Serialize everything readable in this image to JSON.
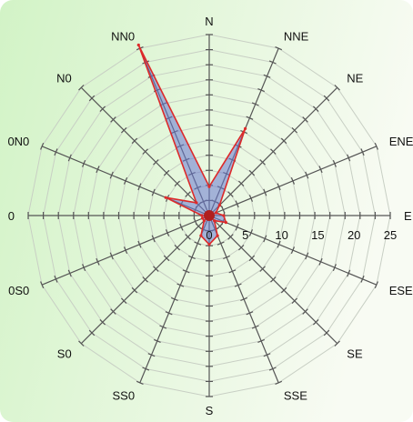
{
  "colors": {
    "background_left": "#d2f3c6",
    "background_right": "#f8fbf3",
    "grid": "#c8cfc4",
    "spoke": "#555555",
    "area_fill": "#6a78cf",
    "area_stroke": "#dd2a2a",
    "center": "#b01e1e",
    "label": "#111111"
  },
  "chart_data": {
    "type": "radar",
    "directions": [
      "N",
      "NNE",
      "NE",
      "ENE",
      "E",
      "ESE",
      "SE",
      "SSE",
      "S",
      "SS0",
      "S0",
      "0S0",
      "0",
      "0N0",
      "N0",
      "NN0"
    ],
    "radial_ticks": [
      "0",
      "5",
      "10",
      "15",
      "20",
      "25"
    ],
    "rmax": 25,
    "rings": 12,
    "grid": true,
    "series": [
      {
        "values": [
          4,
          13,
          2,
          1,
          2,
          2.5,
          1,
          3,
          4,
          3,
          1,
          1,
          1,
          6.5,
          2.5,
          25.5
        ]
      }
    ]
  }
}
